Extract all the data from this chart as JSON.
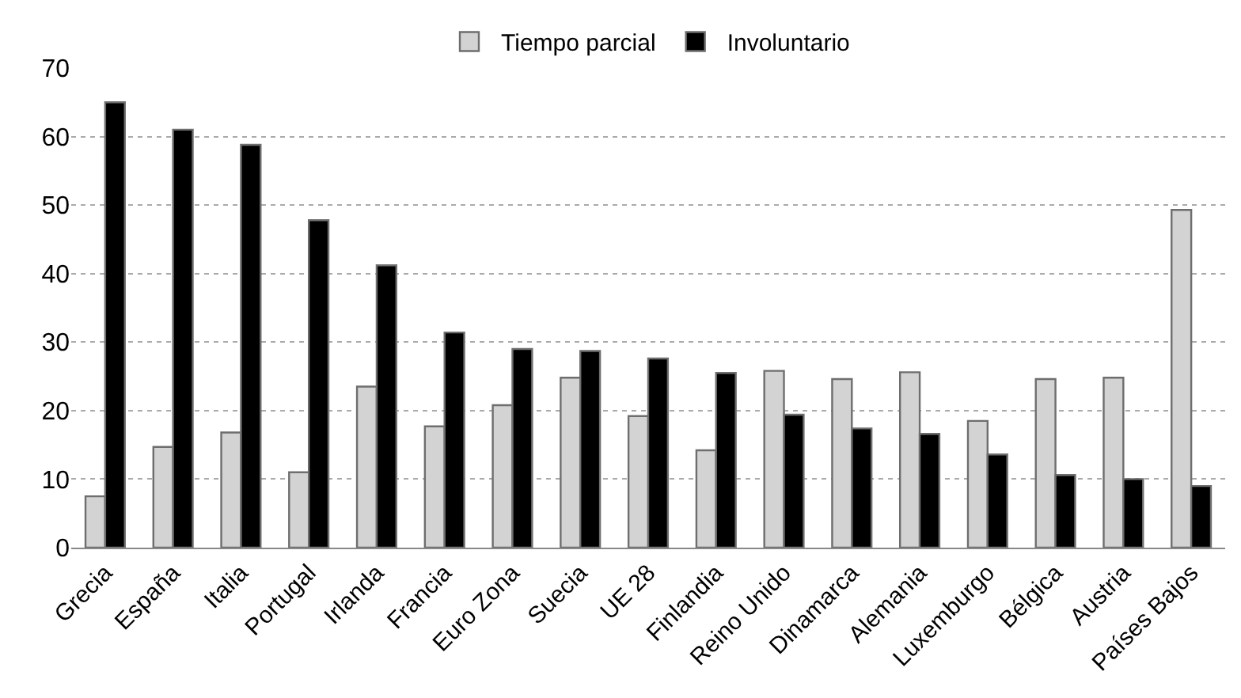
{
  "chart_data": {
    "type": "bar",
    "categories": [
      "Grecia",
      "España",
      "Italia",
      "Portugal",
      "Irlanda",
      "Francia",
      "Euro Zona",
      "Suecia",
      "UE 28",
      "Finlandia",
      "Reino Unido",
      "Dinamarca",
      "Alemania",
      "Luxemburgo",
      "Bélgica",
      "Austria",
      "Países Bajos"
    ],
    "series": [
      {
        "name": "Tiempo parcial",
        "color": "#d3d3d3",
        "values": [
          7.5,
          14.7,
          16.8,
          11,
          23.5,
          17.7,
          20.8,
          24.8,
          19.2,
          14.2,
          25.8,
          24.6,
          25.6,
          18.5,
          24.6,
          24.8,
          49.3
        ]
      },
      {
        "name": "Involuntario",
        "color": "#000000",
        "values": [
          65,
          61,
          58.8,
          47.8,
          41.2,
          31.4,
          29,
          28.7,
          27.6,
          25.5,
          19.4,
          17.4,
          16.6,
          13.6,
          10.6,
          10,
          9
        ]
      }
    ],
    "ylim": [
      0,
      70
    ],
    "yticks": [
      0,
      10,
      20,
      30,
      40,
      50,
      60,
      70
    ],
    "grid": "y",
    "legend": "top"
  }
}
